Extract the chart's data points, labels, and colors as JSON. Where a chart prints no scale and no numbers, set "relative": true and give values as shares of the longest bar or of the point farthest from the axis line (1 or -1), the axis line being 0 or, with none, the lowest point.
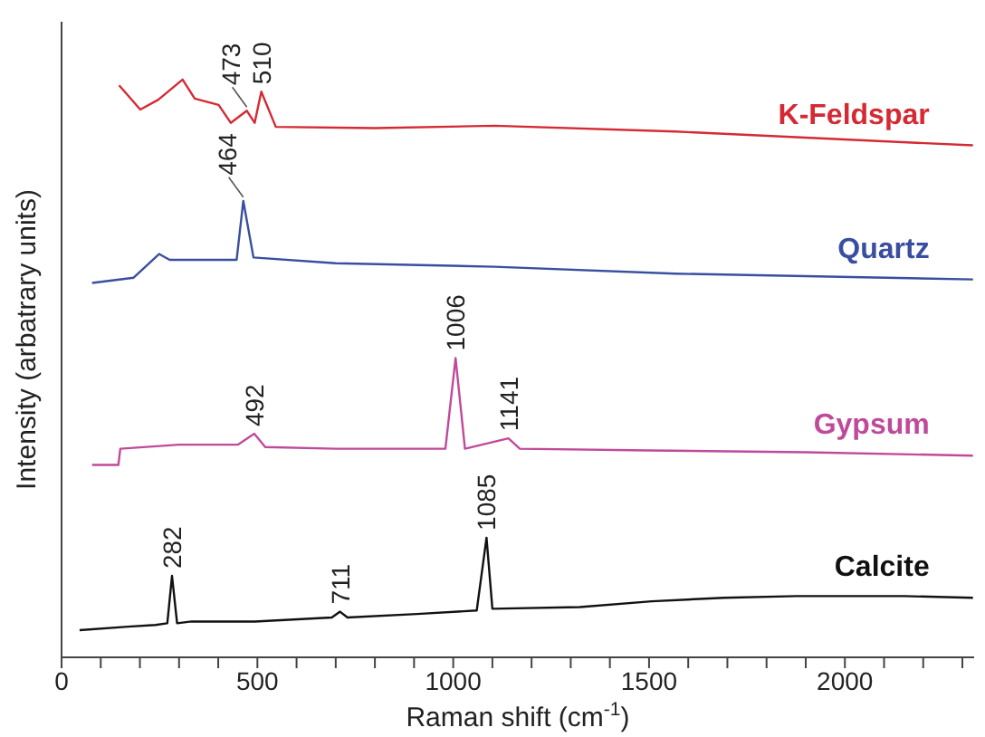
{
  "chart_data": {
    "type": "line",
    "xlabel": "Raman shift (cm$^{-1}$)",
    "ylabel": "Intensity (arbatrary units)",
    "relative": true,
    "xlim": [
      0,
      2330
    ],
    "xticks": [
      0,
      {
        "value": 100,
        "label": null
      },
      {
        "value": 200,
        "label": null
      },
      {
        "value": 300,
        "label": null
      },
      {
        "value": 400,
        "label": null
      },
      500,
      {
        "value": 600,
        "label": null
      },
      {
        "value": 700,
        "label": null
      },
      {
        "value": 800,
        "label": null
      },
      {
        "value": 900,
        "label": null
      },
      1000,
      {
        "value": 1100,
        "label": null
      },
      {
        "value": 1200,
        "label": null
      },
      {
        "value": 1300,
        "label": null
      },
      {
        "value": 1400,
        "label": null
      },
      1500,
      {
        "value": 1600,
        "label": null
      },
      {
        "value": 1700,
        "label": null
      },
      {
        "value": 1800,
        "label": null
      },
      {
        "value": 1900,
        "label": null
      },
      2000,
      {
        "value": 2100,
        "label": null
      },
      {
        "value": 2200,
        "label": null
      },
      {
        "value": 2300,
        "label": null
      }
    ],
    "series": [
      {
        "name": "K-Feldspar",
        "color": "#d42a33",
        "x": [
          147,
          201,
          247,
          309,
          340,
          401,
          432,
          473,
          493,
          510,
          547,
          800,
          1106,
          1567,
          2327
        ],
        "values": [
          0.99,
          0.948,
          0.965,
          1.0,
          0.967,
          0.956,
          0.925,
          0.946,
          0.925,
          0.979,
          0.918,
          0.916,
          0.92,
          0.91,
          0.886
        ]
      },
      {
        "name": "Quartz",
        "color": "#3a4ea0",
        "x": [
          78,
          184,
          249,
          276,
          447,
          464,
          490,
          700,
          1106,
          1567,
          2327
        ],
        "values": [
          0.648,
          0.657,
          0.698,
          0.688,
          0.688,
          0.79,
          0.692,
          0.682,
          0.676,
          0.664,
          0.654
        ]
      },
      {
        "name": "Gypsum",
        "color": "#c04a9a",
        "x": [
          78,
          145,
          150,
          300,
          450,
          492,
          520,
          700,
          980,
          1006,
          1030,
          1141,
          1170,
          1500,
          1900,
          2327
        ],
        "values": [
          0.333,
          0.333,
          0.361,
          0.368,
          0.368,
          0.387,
          0.364,
          0.361,
          0.361,
          0.518,
          0.361,
          0.379,
          0.361,
          0.358,
          0.355,
          0.349
        ]
      },
      {
        "name": "Calcite",
        "color": "#111111",
        "x": [
          46,
          170,
          240,
          270,
          282,
          295,
          332,
          493,
          690,
          711,
          730,
          908,
          1060,
          1085,
          1100,
          1323,
          1507,
          1691,
          1876,
          2152,
          2327
        ],
        "values": [
          0.047,
          0.053,
          0.056,
          0.059,
          0.141,
          0.059,
          0.062,
          0.062,
          0.069,
          0.079,
          0.069,
          0.075,
          0.081,
          0.207,
          0.084,
          0.087,
          0.097,
          0.103,
          0.106,
          0.106,
          0.103
        ]
      }
    ],
    "annotations": [
      {
        "text": "473",
        "x": 473,
        "y": 0.946
      },
      {
        "text": "510",
        "x": 510,
        "y": 0.979
      },
      {
        "text": "464",
        "x": 464,
        "y": 0.79
      },
      {
        "text": "492",
        "x": 492,
        "y": 0.387
      },
      {
        "text": "1006",
        "x": 1006,
        "y": 0.518
      },
      {
        "text": "1141",
        "x": 1141,
        "y": 0.379
      },
      {
        "text": "282",
        "x": 282,
        "y": 0.141
      },
      {
        "text": "711",
        "x": 711,
        "y": 0.079
      },
      {
        "text": "1085",
        "x": 1085,
        "y": 0.207
      }
    ]
  }
}
